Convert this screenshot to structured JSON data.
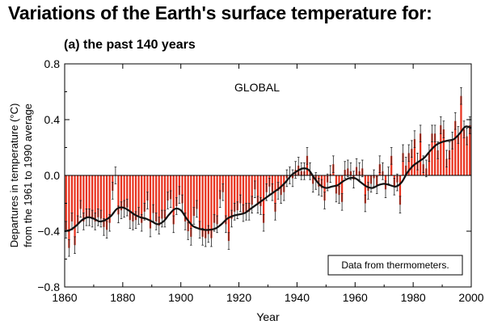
{
  "title": "Variations of the Earth's surface temperature for:",
  "subtitle": "(a) the past 140 years",
  "chart_data": {
    "type": "bar",
    "title": "Variations of the Earth's surface temperature for:",
    "subtitle": "(a) the past 140 years",
    "panel_label": "GLOBAL",
    "xlabel": "Year",
    "ylabel_line1": "Departures in temperature (°C)",
    "ylabel_line2": "from the 1961 to 1990 average",
    "annotation": "Data from thermometers.",
    "xlim": [
      1860,
      2000
    ],
    "ylim": [
      -0.8,
      0.8
    ],
    "x_ticks": [
      "1860",
      "1880",
      "1900",
      "1920",
      "1940",
      "1960",
      "1980",
      "2000"
    ],
    "x_tick_values": [
      1860,
      1880,
      1900,
      1920,
      1940,
      1960,
      1980,
      2000
    ],
    "y_ticks": [
      "0.8",
      "0.4",
      "0.0",
      "−0.4",
      "−0.8"
    ],
    "y_tick_values": [
      0.8,
      0.4,
      0.0,
      -0.4,
      -0.8
    ],
    "grid": false,
    "bar_color": "#e8321e",
    "smooth_color": "#111111",
    "error_color": "#222222",
    "years": [
      1861,
      1862,
      1863,
      1864,
      1865,
      1866,
      1867,
      1868,
      1869,
      1870,
      1871,
      1872,
      1873,
      1874,
      1875,
      1876,
      1877,
      1878,
      1879,
      1880,
      1881,
      1882,
      1883,
      1884,
      1885,
      1886,
      1887,
      1888,
      1889,
      1890,
      1891,
      1892,
      1893,
      1894,
      1895,
      1896,
      1897,
      1898,
      1899,
      1900,
      1901,
      1902,
      1903,
      1904,
      1905,
      1906,
      1907,
      1908,
      1909,
      1910,
      1911,
      1912,
      1913,
      1914,
      1915,
      1916,
      1917,
      1918,
      1919,
      1920,
      1921,
      1922,
      1923,
      1924,
      1925,
      1926,
      1927,
      1928,
      1929,
      1930,
      1931,
      1932,
      1933,
      1934,
      1935,
      1936,
      1937,
      1938,
      1939,
      1940,
      1941,
      1942,
      1943,
      1944,
      1945,
      1946,
      1947,
      1948,
      1949,
      1950,
      1951,
      1952,
      1953,
      1954,
      1955,
      1956,
      1957,
      1958,
      1959,
      1960,
      1961,
      1962,
      1963,
      1964,
      1965,
      1966,
      1967,
      1968,
      1969,
      1970,
      1971,
      1972,
      1973,
      1974,
      1975,
      1976,
      1977,
      1978,
      1979,
      1980,
      1981,
      1982,
      1983,
      1984,
      1985,
      1986,
      1987,
      1988,
      1989,
      1990,
      1991,
      1992,
      1993,
      1994,
      1995,
      1996,
      1997,
      1998,
      1999,
      2000
    ],
    "values": [
      -0.39,
      -0.52,
      -0.33,
      -0.5,
      -0.35,
      -0.24,
      -0.33,
      -0.3,
      -0.3,
      -0.31,
      -0.33,
      -0.3,
      -0.31,
      -0.37,
      -0.39,
      -0.34,
      -0.11,
      0.0,
      -0.28,
      -0.25,
      -0.24,
      -0.23,
      -0.32,
      -0.33,
      -0.32,
      -0.29,
      -0.34,
      -0.26,
      -0.18,
      -0.38,
      -0.27,
      -0.33,
      -0.36,
      -0.31,
      -0.31,
      -0.18,
      -0.17,
      -0.35,
      -0.22,
      -0.14,
      -0.2,
      -0.33,
      -0.4,
      -0.44,
      -0.29,
      -0.24,
      -0.39,
      -0.44,
      -0.45,
      -0.42,
      -0.45,
      -0.34,
      -0.35,
      -0.17,
      -0.12,
      -0.35,
      -0.47,
      -0.31,
      -0.26,
      -0.25,
      -0.2,
      -0.27,
      -0.26,
      -0.26,
      -0.21,
      -0.1,
      -0.21,
      -0.22,
      -0.34,
      -0.12,
      -0.08,
      -0.12,
      -0.26,
      -0.11,
      -0.14,
      -0.12,
      -0.02,
      0.0,
      -0.02,
      0.04,
      0.07,
      0.03,
      0.03,
      0.14,
      0.03,
      -0.06,
      -0.04,
      -0.08,
      -0.09,
      -0.18,
      -0.05,
      0.01,
      0.08,
      -0.13,
      -0.14,
      -0.19,
      0.04,
      0.05,
      0.03,
      -0.03,
      0.06,
      0.03,
      0.05,
      -0.2,
      -0.11,
      -0.06,
      -0.02,
      -0.07,
      0.08,
      0.03,
      -0.1,
      0.0,
      0.14,
      -0.08,
      -0.05,
      -0.21,
      0.16,
      0.07,
      0.16,
      0.19,
      0.26,
      0.1,
      0.3,
      0.08,
      0.05,
      0.16,
      0.3,
      0.3,
      0.18,
      0.36,
      0.33,
      0.12,
      0.18,
      0.25,
      0.39,
      0.29,
      0.57,
      0.33,
      0.28,
      0.36
    ],
    "error_bars": 0.06,
    "smooth": [
      [
        1860,
        -0.4
      ],
      [
        1862,
        -0.39
      ],
      [
        1864,
        -0.36
      ],
      [
        1866,
        -0.32
      ],
      [
        1868,
        -0.3
      ],
      [
        1870,
        -0.31
      ],
      [
        1872,
        -0.33
      ],
      [
        1874,
        -0.32
      ],
      [
        1876,
        -0.29
      ],
      [
        1878,
        -0.24
      ],
      [
        1880,
        -0.23
      ],
      [
        1882,
        -0.25
      ],
      [
        1884,
        -0.28
      ],
      [
        1886,
        -0.3
      ],
      [
        1888,
        -0.31
      ],
      [
        1890,
        -0.33
      ],
      [
        1892,
        -0.35
      ],
      [
        1894,
        -0.33
      ],
      [
        1896,
        -0.28
      ],
      [
        1898,
        -0.24
      ],
      [
        1900,
        -0.25
      ],
      [
        1902,
        -0.31
      ],
      [
        1904,
        -0.36
      ],
      [
        1906,
        -0.38
      ],
      [
        1908,
        -0.39
      ],
      [
        1910,
        -0.39
      ],
      [
        1912,
        -0.38
      ],
      [
        1914,
        -0.35
      ],
      [
        1916,
        -0.31
      ],
      [
        1918,
        -0.29
      ],
      [
        1920,
        -0.28
      ],
      [
        1922,
        -0.27
      ],
      [
        1924,
        -0.24
      ],
      [
        1926,
        -0.21
      ],
      [
        1928,
        -0.18
      ],
      [
        1930,
        -0.15
      ],
      [
        1932,
        -0.12
      ],
      [
        1934,
        -0.09
      ],
      [
        1936,
        -0.05
      ],
      [
        1938,
        0.0
      ],
      [
        1940,
        0.03
      ],
      [
        1942,
        0.05
      ],
      [
        1944,
        0.04
      ],
      [
        1946,
        -0.02
      ],
      [
        1948,
        -0.07
      ],
      [
        1950,
        -0.09
      ],
      [
        1952,
        -0.08
      ],
      [
        1954,
        -0.07
      ],
      [
        1956,
        -0.04
      ],
      [
        1958,
        -0.02
      ],
      [
        1960,
        -0.02
      ],
      [
        1962,
        -0.05
      ],
      [
        1964,
        -0.08
      ],
      [
        1966,
        -0.09
      ],
      [
        1968,
        -0.07
      ],
      [
        1970,
        -0.06
      ],
      [
        1972,
        -0.07
      ],
      [
        1974,
        -0.08
      ],
      [
        1976,
        -0.05
      ],
      [
        1978,
        0.02
      ],
      [
        1980,
        0.07
      ],
      [
        1982,
        0.1
      ],
      [
        1984,
        0.13
      ],
      [
        1986,
        0.18
      ],
      [
        1988,
        0.22
      ],
      [
        1990,
        0.24
      ],
      [
        1992,
        0.25
      ],
      [
        1994,
        0.26
      ],
      [
        1996,
        0.3
      ],
      [
        1998,
        0.35
      ],
      [
        2000,
        0.34
      ]
    ]
  }
}
